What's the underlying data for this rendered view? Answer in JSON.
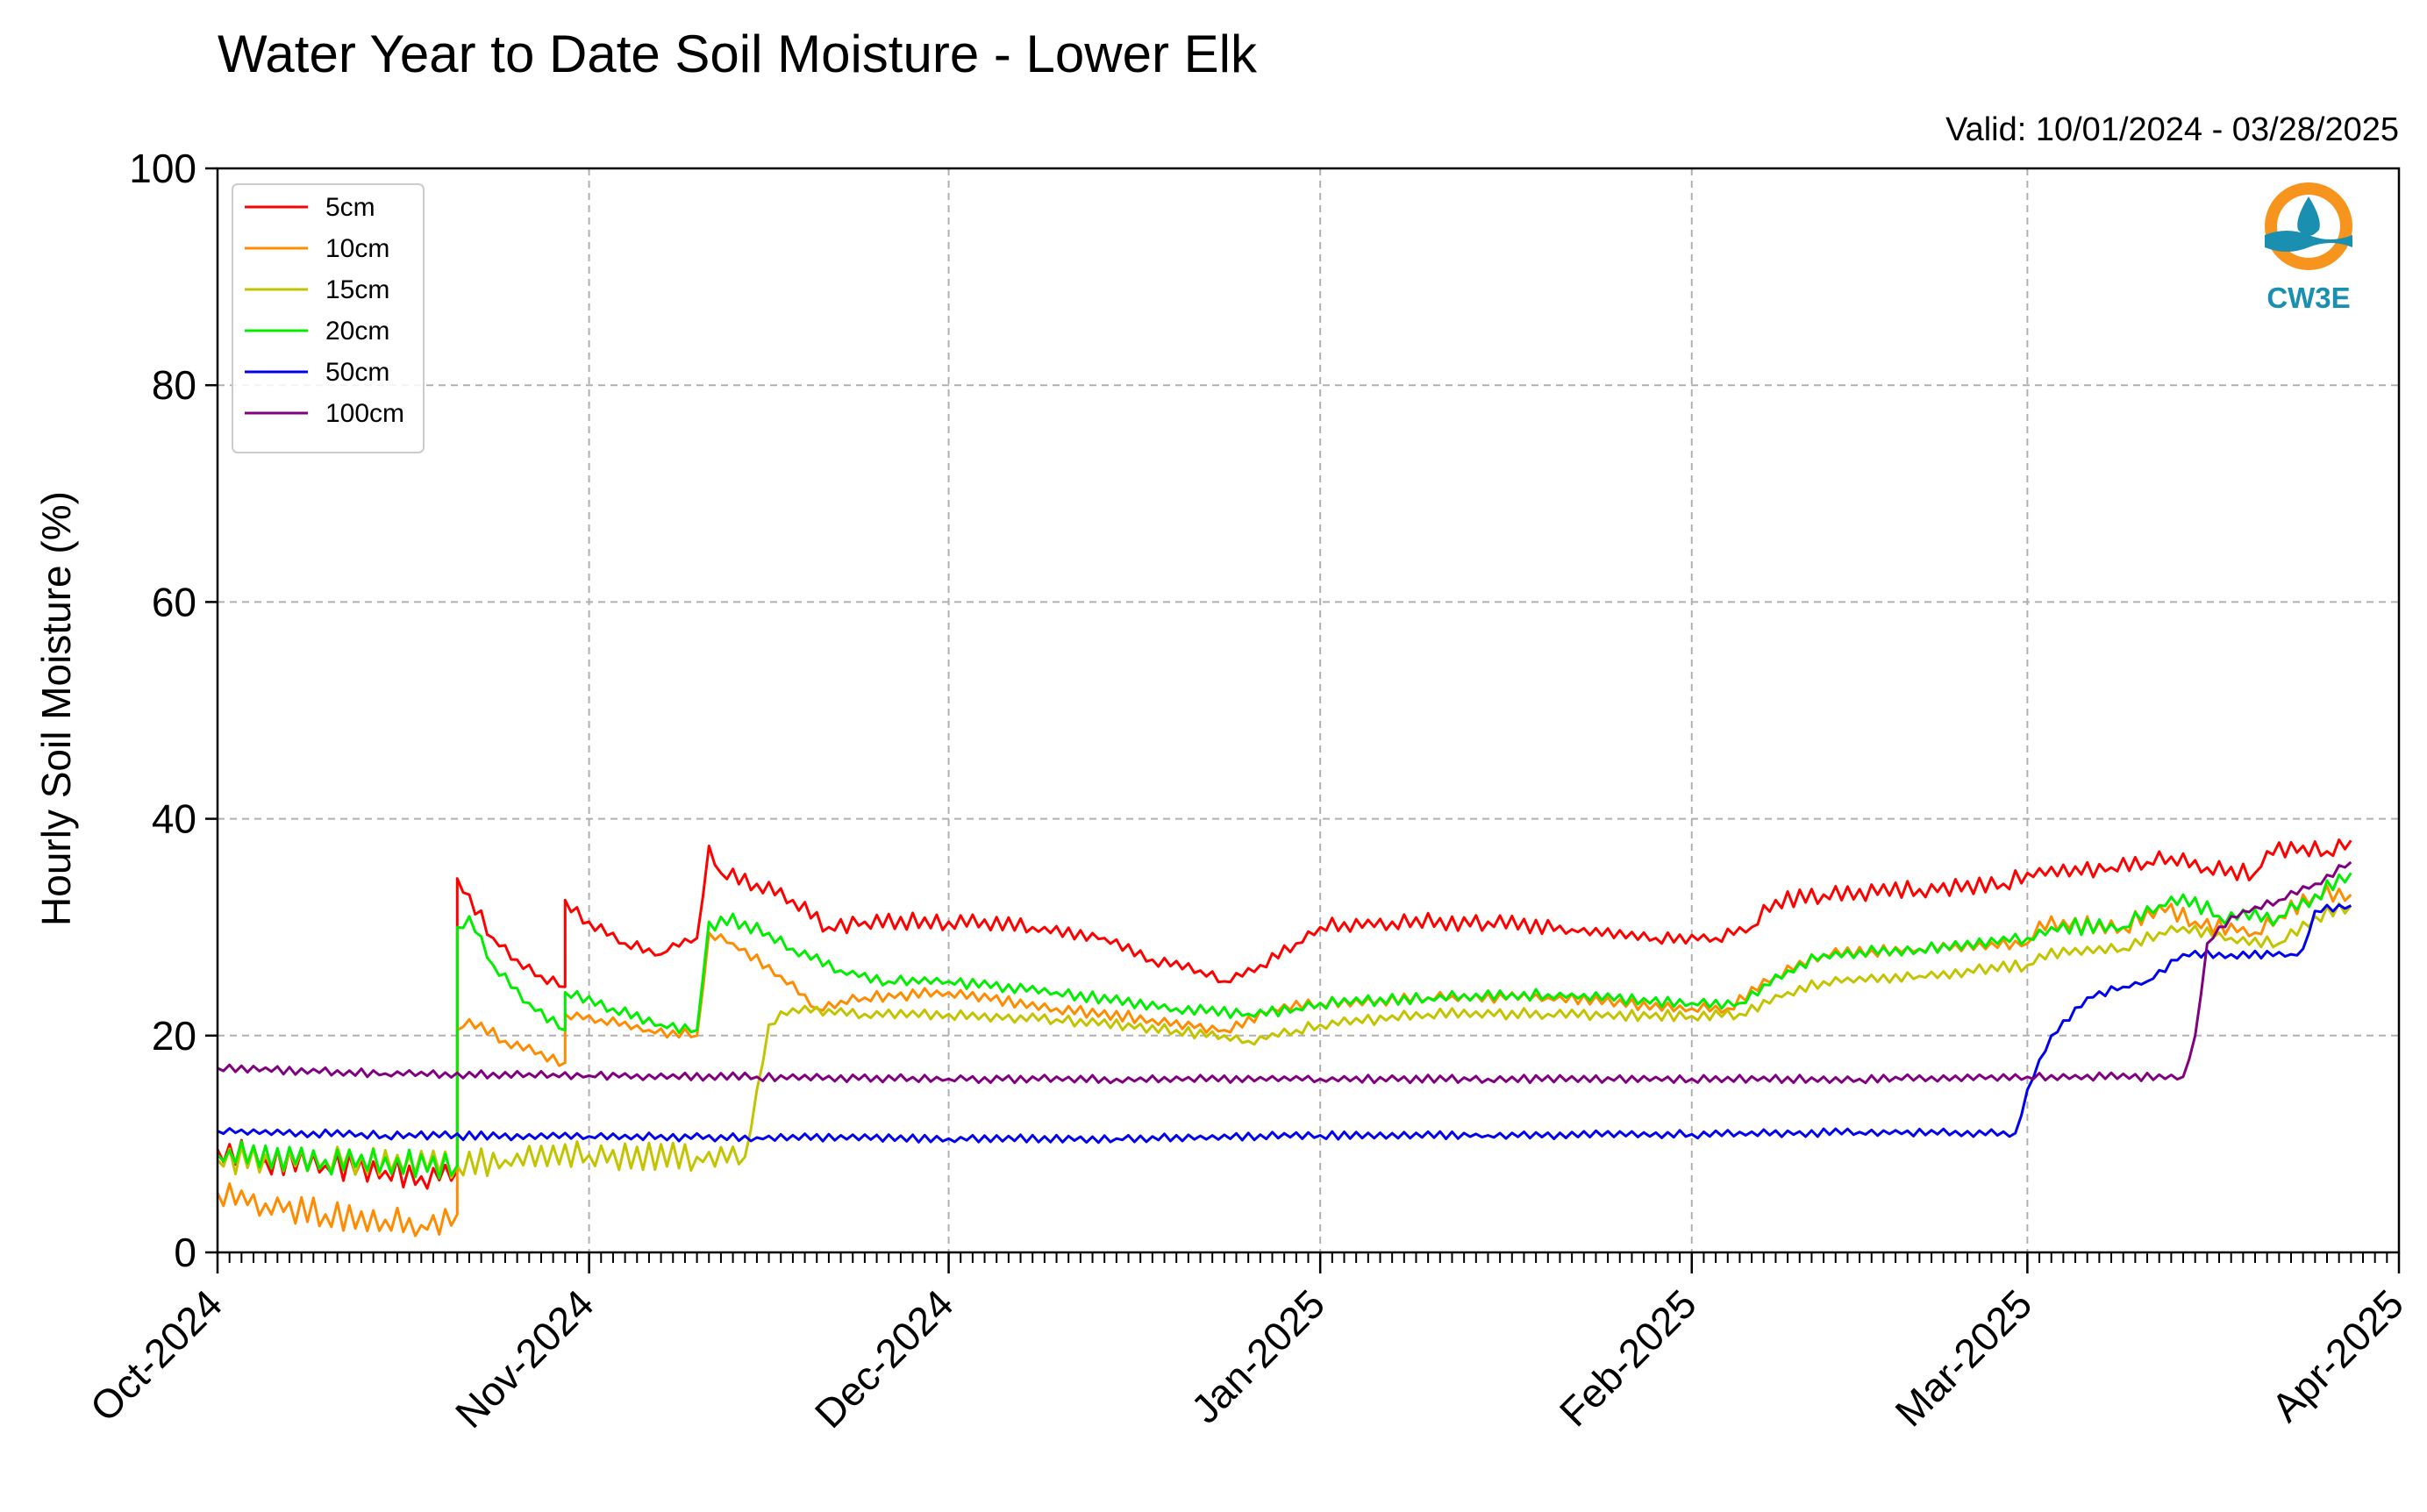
{
  "chart_data": {
    "type": "line",
    "title": "Water Year to Date Soil Moisture - Lower Elk",
    "subtitle": "Valid: 10/01/2024 - 03/28/2025",
    "ylabel": "Hourly Soil Moisture (%)",
    "xlabel": "",
    "xlim": [
      "2024-10-01",
      "2025-04-01"
    ],
    "ylim": [
      0,
      100
    ],
    "y_ticks": [
      0,
      20,
      40,
      60,
      80,
      100
    ],
    "x_ticks": [
      {
        "date": "2024-10-01",
        "label": "Oct-2024"
      },
      {
        "date": "2024-11-01",
        "label": "Nov-2024"
      },
      {
        "date": "2024-12-01",
        "label": "Dec-2024"
      },
      {
        "date": "2025-01-01",
        "label": "Jan-2025"
      },
      {
        "date": "2025-02-01",
        "label": "Feb-2025"
      },
      {
        "date": "2025-03-01",
        "label": "Mar-2025"
      },
      {
        "date": "2025-04-01",
        "label": "Apr-2025"
      }
    ],
    "grid": true,
    "legend_position": "top-left",
    "logo_text": "CW3E",
    "series": [
      {
        "name": "5cm",
        "color": "#ff0000",
        "points": [
          [
            "2024-10-01",
            9.5
          ],
          [
            "2024-10-05",
            8.5
          ],
          [
            "2024-10-10",
            8.0
          ],
          [
            "2024-10-15",
            7.5
          ],
          [
            "2024-10-18",
            7.0
          ],
          [
            "2024-10-21",
            7.5
          ],
          [
            "2024-10-21",
            34.5
          ],
          [
            "2024-10-22",
            33.0
          ],
          [
            "2024-10-24",
            29.0
          ],
          [
            "2024-10-26",
            27.0
          ],
          [
            "2024-10-28",
            25.5
          ],
          [
            "2024-10-30",
            24.5
          ],
          [
            "2024-10-30",
            32.5
          ],
          [
            "2024-11-01",
            30.5
          ],
          [
            "2024-11-04",
            28.5
          ],
          [
            "2024-11-07",
            27.5
          ],
          [
            "2024-11-08",
            28.5
          ],
          [
            "2024-11-10",
            29.0
          ],
          [
            "2024-11-11",
            37.5
          ],
          [
            "2024-11-12",
            35.0
          ],
          [
            "2024-11-15",
            34.0
          ],
          [
            "2024-11-18",
            32.5
          ],
          [
            "2024-11-21",
            30.0
          ],
          [
            "2024-11-24",
            30.5
          ],
          [
            "2024-12-01",
            30.5
          ],
          [
            "2024-12-08",
            30.0
          ],
          [
            "2024-12-14",
            29.0
          ],
          [
            "2024-12-18",
            27.0
          ],
          [
            "2024-12-22",
            26.0
          ],
          [
            "2024-12-24",
            25.0
          ],
          [
            "2024-12-27",
            26.5
          ],
          [
            "2024-12-30",
            28.5
          ],
          [
            "2025-01-01",
            30.0
          ],
          [
            "2025-01-07",
            30.5
          ],
          [
            "2025-01-15",
            30.5
          ],
          [
            "2025-01-22",
            29.8
          ],
          [
            "2025-01-29",
            29.0
          ],
          [
            "2025-02-03",
            29.0
          ],
          [
            "2025-02-06",
            30.0
          ],
          [
            "2025-02-08",
            32.5
          ],
          [
            "2025-02-12",
            33.0
          ],
          [
            "2025-02-20",
            33.5
          ],
          [
            "2025-02-27",
            34.0
          ],
          [
            "2025-03-01",
            35.0
          ],
          [
            "2025-03-08",
            35.5
          ],
          [
            "2025-03-11",
            36.0
          ],
          [
            "2025-03-13",
            36.5
          ],
          [
            "2025-03-16",
            35.5
          ],
          [
            "2025-03-20",
            35.0
          ],
          [
            "2025-03-21",
            37.0
          ],
          [
            "2025-03-24",
            37.5
          ],
          [
            "2025-03-26",
            37.0
          ],
          [
            "2025-03-28",
            38.0
          ]
        ]
      },
      {
        "name": "10cm",
        "color": "#ff8c00",
        "points": [
          [
            "2024-10-01",
            5.5
          ],
          [
            "2024-10-05",
            4.5
          ],
          [
            "2024-10-10",
            3.5
          ],
          [
            "2024-10-15",
            3.0
          ],
          [
            "2024-10-18",
            2.5
          ],
          [
            "2024-10-21",
            3.5
          ],
          [
            "2024-10-21",
            20.5
          ],
          [
            "2024-10-22",
            21.5
          ],
          [
            "2024-10-25",
            19.5
          ],
          [
            "2024-10-30",
            17.5
          ],
          [
            "2024-10-30",
            22.0
          ],
          [
            "2024-11-02",
            21.5
          ],
          [
            "2024-11-06",
            20.5
          ],
          [
            "2024-11-10",
            20.0
          ],
          [
            "2024-11-11",
            29.5
          ],
          [
            "2024-11-13",
            28.5
          ],
          [
            "2024-11-17",
            25.5
          ],
          [
            "2024-11-20",
            22.5
          ],
          [
            "2024-11-24",
            23.5
          ],
          [
            "2024-12-01",
            24.0
          ],
          [
            "2024-12-10",
            22.5
          ],
          [
            "2024-12-18",
            21.5
          ],
          [
            "2024-12-24",
            20.5
          ],
          [
            "2024-12-28",
            22.5
          ],
          [
            "2025-01-01",
            23.0
          ],
          [
            "2025-01-10",
            23.5
          ],
          [
            "2025-01-20",
            23.5
          ],
          [
            "2025-02-01",
            22.5
          ],
          [
            "2025-02-04",
            22.5
          ],
          [
            "2025-02-08",
            25.5
          ],
          [
            "2025-02-12",
            27.5
          ],
          [
            "2025-02-20",
            28.0
          ],
          [
            "2025-03-01",
            28.5
          ],
          [
            "2025-03-02",
            30.5
          ],
          [
            "2025-03-09",
            30.0
          ],
          [
            "2025-03-12",
            32.0
          ],
          [
            "2025-03-15",
            30.5
          ],
          [
            "2025-03-20",
            29.5
          ],
          [
            "2025-03-22",
            31.0
          ],
          [
            "2025-03-25",
            33.0
          ],
          [
            "2025-03-28",
            33.0
          ]
        ]
      },
      {
        "name": "15cm",
        "color": "#c3c300",
        "points": [
          [
            "2024-10-01",
            8.5
          ],
          [
            "2024-10-10",
            8.5
          ],
          [
            "2024-10-21",
            8.0
          ],
          [
            "2024-10-25",
            8.5
          ],
          [
            "2024-11-01",
            9.0
          ],
          [
            "2024-11-10",
            8.8
          ],
          [
            "2024-11-14",
            8.8
          ],
          [
            "2024-11-15",
            15.0
          ],
          [
            "2024-11-16",
            21.0
          ],
          [
            "2024-11-18",
            22.5
          ],
          [
            "2024-11-24",
            22.0
          ],
          [
            "2024-12-01",
            22.0
          ],
          [
            "2024-12-10",
            21.5
          ],
          [
            "2024-12-20",
            20.5
          ],
          [
            "2024-12-26",
            19.5
          ],
          [
            "2024-12-30",
            20.5
          ],
          [
            "2025-01-01",
            21.0
          ],
          [
            "2025-01-10",
            22.0
          ],
          [
            "2025-01-20",
            22.0
          ],
          [
            "2025-02-01",
            21.8
          ],
          [
            "2025-02-05",
            22.0
          ],
          [
            "2025-02-09",
            24.0
          ],
          [
            "2025-02-12",
            25.0
          ],
          [
            "2025-02-20",
            25.5
          ],
          [
            "2025-03-01",
            26.5
          ],
          [
            "2025-03-02",
            27.5
          ],
          [
            "2025-03-09",
            28.0
          ],
          [
            "2025-03-12",
            29.5
          ],
          [
            "2025-03-14",
            30.0
          ],
          [
            "2025-03-18",
            29.0
          ],
          [
            "2025-03-22",
            28.5
          ],
          [
            "2025-03-25",
            31.0
          ],
          [
            "2025-03-28",
            32.0
          ]
        ]
      },
      {
        "name": "20cm",
        "color": "#00ee00",
        "points": [
          [
            "2024-10-01",
            9.0
          ],
          [
            "2024-10-10",
            8.5
          ],
          [
            "2024-10-21",
            8.0
          ],
          [
            "2024-10-21",
            30.0
          ],
          [
            "2024-10-22",
            31.0
          ],
          [
            "2024-10-24",
            26.5
          ],
          [
            "2024-10-27",
            23.0
          ],
          [
            "2024-10-30",
            20.5
          ],
          [
            "2024-10-30",
            24.0
          ],
          [
            "2024-11-03",
            22.5
          ],
          [
            "2024-11-07",
            21.0
          ],
          [
            "2024-11-10",
            20.5
          ],
          [
            "2024-11-11",
            30.5
          ],
          [
            "2024-11-14",
            30.5
          ],
          [
            "2024-11-18",
            28.0
          ],
          [
            "2024-11-22",
            26.0
          ],
          [
            "2024-11-26",
            25.0
          ],
          [
            "2024-12-01",
            25.0
          ],
          [
            "2024-12-10",
            24.0
          ],
          [
            "2024-12-20",
            22.5
          ],
          [
            "2024-12-26",
            22.0
          ],
          [
            "2024-12-30",
            22.5
          ],
          [
            "2025-01-01",
            23.0
          ],
          [
            "2025-01-10",
            23.5
          ],
          [
            "2025-01-20",
            23.8
          ],
          [
            "2025-02-01",
            23.0
          ],
          [
            "2025-02-05",
            23.0
          ],
          [
            "2025-02-09",
            26.0
          ],
          [
            "2025-02-12",
            27.5
          ],
          [
            "2025-02-20",
            28.0
          ],
          [
            "2025-03-01",
            29.0
          ],
          [
            "2025-03-03",
            30.0
          ],
          [
            "2025-03-09",
            30.0
          ],
          [
            "2025-03-12",
            32.0
          ],
          [
            "2025-03-14",
            33.0
          ],
          [
            "2025-03-17",
            31.0
          ],
          [
            "2025-03-22",
            31.0
          ],
          [
            "2025-03-25",
            33.0
          ],
          [
            "2025-03-28",
            35.0
          ]
        ]
      },
      {
        "name": "50cm",
        "color": "#0000ee",
        "points": [
          [
            "2024-10-01",
            11.2
          ],
          [
            "2024-10-15",
            10.8
          ],
          [
            "2024-11-01",
            10.7
          ],
          [
            "2024-11-15",
            10.6
          ],
          [
            "2024-12-01",
            10.5
          ],
          [
            "2024-12-15",
            10.5
          ],
          [
            "2025-01-01",
            10.8
          ],
          [
            "2025-01-15",
            10.8
          ],
          [
            "2025-02-01",
            10.9
          ],
          [
            "2025-02-15",
            11.1
          ],
          [
            "2025-02-28",
            11.0
          ],
          [
            "2025-03-01",
            15.0
          ],
          [
            "2025-03-03",
            20.0
          ],
          [
            "2025-03-06",
            23.5
          ],
          [
            "2025-03-09",
            24.5
          ],
          [
            "2025-03-11",
            25.0
          ],
          [
            "2025-03-14",
            27.5
          ],
          [
            "2025-03-18",
            27.5
          ],
          [
            "2025-03-23",
            27.5
          ],
          [
            "2025-03-24",
            28.0
          ],
          [
            "2025-03-25",
            31.5
          ],
          [
            "2025-03-28",
            32.0
          ]
        ]
      },
      {
        "name": "100cm",
        "color": "#800080",
        "points": [
          [
            "2024-10-01",
            17.0
          ],
          [
            "2024-10-15",
            16.5
          ],
          [
            "2024-11-01",
            16.3
          ],
          [
            "2024-11-15",
            16.2
          ],
          [
            "2024-12-01",
            16.0
          ],
          [
            "2024-12-15",
            16.0
          ],
          [
            "2025-01-01",
            16.0
          ],
          [
            "2025-01-15",
            16.0
          ],
          [
            "2025-02-01",
            16.0
          ],
          [
            "2025-02-15",
            16.0
          ],
          [
            "2025-03-01",
            16.2
          ],
          [
            "2025-03-14",
            16.2
          ],
          [
            "2025-03-15",
            20.0
          ],
          [
            "2025-03-16",
            28.5
          ],
          [
            "2025-03-18",
            31.0
          ],
          [
            "2025-03-22",
            32.5
          ],
          [
            "2025-03-25",
            34.0
          ],
          [
            "2025-03-28",
            36.0
          ]
        ]
      }
    ]
  }
}
